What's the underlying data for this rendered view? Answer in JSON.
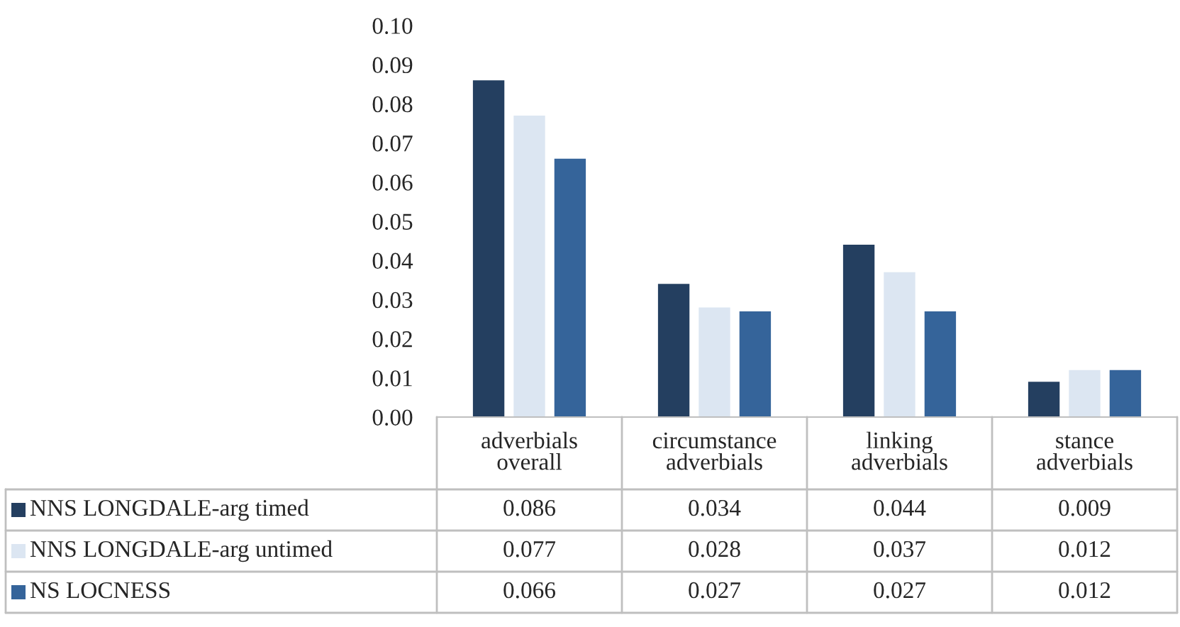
{
  "chart_data": {
    "type": "bar",
    "categories": [
      "adverbials overall",
      "circumstance adverbials",
      "linking adverbials",
      "stance adverbials"
    ],
    "series": [
      {
        "name": "NNS LONGDALE-arg timed",
        "color": "#243f60",
        "values": [
          0.086,
          0.034,
          0.044,
          0.009
        ]
      },
      {
        "name": "NNS LONGDALE-arg untimed",
        "color": "#dce6f2",
        "values": [
          0.077,
          0.028,
          0.037,
          0.012
        ]
      },
      {
        "name": "NS LOCNESS",
        "color": "#35649a",
        "values": [
          0.066,
          0.027,
          0.027,
          0.012
        ]
      }
    ],
    "ylim": [
      0,
      0.1
    ],
    "yticks": [
      {
        "value": 0,
        "label": "0.00"
      },
      {
        "value": 0.01,
        "label": "0.01"
      },
      {
        "value": 0.02,
        "label": "0.02"
      },
      {
        "value": 0.03,
        "label": "0.03"
      },
      {
        "value": 0.04,
        "label": "0.04"
      },
      {
        "value": 0.05,
        "label": "0.05"
      },
      {
        "value": 0.06,
        "label": "0.06"
      },
      {
        "value": 0.07,
        "label": "0.07"
      },
      {
        "value": 0.08,
        "label": "0.08"
      },
      {
        "value": 0.09,
        "label": "0.09"
      },
      {
        "value": 0.1,
        "label": "0.10"
      }
    ],
    "data_labels": true,
    "legend": "bottom left",
    "grid": false
  }
}
